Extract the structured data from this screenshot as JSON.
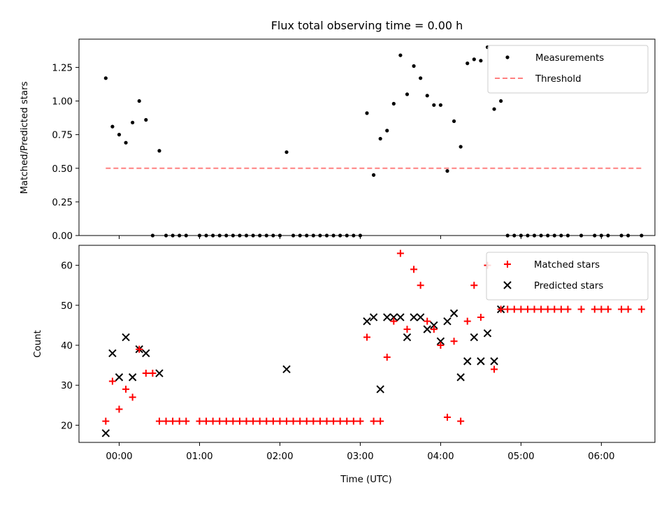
{
  "chart_data": [
    {
      "type": "scatter",
      "title": "Flux total observing time = 0.00 h",
      "xlabel": "",
      "ylabel": "Matched/Predicted stars",
      "ylim": [
        0,
        1.46
      ],
      "yticks": [
        "0.00",
        "0.25",
        "0.50",
        "0.75",
        "1.00",
        "1.25"
      ],
      "legend": {
        "position": "top-right",
        "entries": [
          "Measurements",
          "Threshold"
        ]
      },
      "threshold": {
        "name": "Threshold",
        "value": 0.5,
        "x_range": [
          "-0:10",
          "6:30"
        ],
        "color": "#ff8080"
      },
      "series": [
        {
          "name": "Measurements",
          "marker": "dot",
          "color": "#000000",
          "points": [
            [
              "-0:10",
              1.17
            ],
            [
              "-0:05",
              0.81
            ],
            [
              "0:00",
              0.75
            ],
            [
              "0:05",
              0.69
            ],
            [
              "0:10",
              0.84
            ],
            [
              "0:15",
              1.0
            ],
            [
              "0:20",
              0.86
            ],
            [
              "0:25",
              0.0
            ],
            [
              "0:30",
              0.63
            ],
            [
              "0:35",
              0.0
            ],
            [
              "0:40",
              0.0
            ],
            [
              "0:45",
              0.0
            ],
            [
              "0:50",
              0.0
            ],
            [
              "1:00",
              0.0
            ],
            [
              "1:05",
              0.0
            ],
            [
              "1:10",
              0.0
            ],
            [
              "1:15",
              0.0
            ],
            [
              "1:20",
              0.0
            ],
            [
              "1:25",
              0.0
            ],
            [
              "1:30",
              0.0
            ],
            [
              "1:35",
              0.0
            ],
            [
              "1:40",
              0.0
            ],
            [
              "1:45",
              0.0
            ],
            [
              "1:50",
              0.0
            ],
            [
              "1:55",
              0.0
            ],
            [
              "2:00",
              0.0
            ],
            [
              "2:05",
              0.62
            ],
            [
              "2:10",
              0.0
            ],
            [
              "2:15",
              0.0
            ],
            [
              "2:20",
              0.0
            ],
            [
              "2:25",
              0.0
            ],
            [
              "2:30",
              0.0
            ],
            [
              "2:35",
              0.0
            ],
            [
              "2:40",
              0.0
            ],
            [
              "2:45",
              0.0
            ],
            [
              "2:50",
              0.0
            ],
            [
              "2:55",
              0.0
            ],
            [
              "3:00",
              0.0
            ],
            [
              "3:05",
              0.91
            ],
            [
              "3:10",
              0.45
            ],
            [
              "3:15",
              0.72
            ],
            [
              "3:20",
              0.78
            ],
            [
              "3:25",
              0.98
            ],
            [
              "3:30",
              1.34
            ],
            [
              "3:35",
              1.05
            ],
            [
              "3:40",
              1.26
            ],
            [
              "3:45",
              1.17
            ],
            [
              "3:50",
              1.04
            ],
            [
              "3:55",
              0.97
            ],
            [
              "4:00",
              0.97
            ],
            [
              "4:05",
              0.48
            ],
            [
              "4:10",
              0.85
            ],
            [
              "4:15",
              0.66
            ],
            [
              "4:20",
              1.28
            ],
            [
              "4:25",
              1.31
            ],
            [
              "4:30",
              1.3
            ],
            [
              "4:35",
              1.4
            ],
            [
              "4:40",
              0.94
            ],
            [
              "4:45",
              1.0
            ],
            [
              "4:50",
              0.0
            ],
            [
              "4:55",
              0.0
            ],
            [
              "5:00",
              0.0
            ],
            [
              "5:05",
              0.0
            ],
            [
              "5:10",
              0.0
            ],
            [
              "5:15",
              0.0
            ],
            [
              "5:20",
              0.0
            ],
            [
              "5:25",
              0.0
            ],
            [
              "5:30",
              0.0
            ],
            [
              "5:35",
              0.0
            ],
            [
              "5:45",
              0.0
            ],
            [
              "5:55",
              0.0
            ],
            [
              "6:00",
              0.0
            ],
            [
              "6:05",
              0.0
            ],
            [
              "6:15",
              0.0
            ],
            [
              "6:20",
              0.0
            ],
            [
              "6:30",
              0.0
            ]
          ]
        }
      ]
    },
    {
      "type": "scatter",
      "title": "",
      "xlabel": "Time (UTC)",
      "ylabel": "Count",
      "ylim": [
        15.7,
        65
      ],
      "yticks": [
        "20",
        "30",
        "40",
        "50",
        "60"
      ],
      "xlim": [
        "-0:30",
        "6:40"
      ],
      "xticks": [
        "00:00",
        "01:00",
        "02:00",
        "03:00",
        "04:00",
        "05:00",
        "06:00"
      ],
      "legend": {
        "position": "top-right",
        "entries": [
          "Matched stars",
          "Predicted stars"
        ]
      },
      "series": [
        {
          "name": "Matched stars",
          "marker": "plus",
          "color": "#ff0000",
          "points": [
            [
              "-0:10",
              21
            ],
            [
              "-0:05",
              31
            ],
            [
              "0:00",
              24
            ],
            [
              "0:05",
              29
            ],
            [
              "0:10",
              27
            ],
            [
              "0:15",
              39
            ],
            [
              "0:20",
              33
            ],
            [
              "0:25",
              33
            ],
            [
              "0:30",
              21
            ],
            [
              "0:35",
              21
            ],
            [
              "0:40",
              21
            ],
            [
              "0:45",
              21
            ],
            [
              "0:50",
              21
            ],
            [
              "1:00",
              21
            ],
            [
              "1:05",
              21
            ],
            [
              "1:10",
              21
            ],
            [
              "1:15",
              21
            ],
            [
              "1:20",
              21
            ],
            [
              "1:25",
              21
            ],
            [
              "1:30",
              21
            ],
            [
              "1:35",
              21
            ],
            [
              "1:40",
              21
            ],
            [
              "1:45",
              21
            ],
            [
              "1:50",
              21
            ],
            [
              "1:55",
              21
            ],
            [
              "2:00",
              21
            ],
            [
              "2:05",
              21
            ],
            [
              "2:10",
              21
            ],
            [
              "2:15",
              21
            ],
            [
              "2:20",
              21
            ],
            [
              "2:25",
              21
            ],
            [
              "2:30",
              21
            ],
            [
              "2:35",
              21
            ],
            [
              "2:40",
              21
            ],
            [
              "2:45",
              21
            ],
            [
              "2:50",
              21
            ],
            [
              "2:55",
              21
            ],
            [
              "3:00",
              21
            ],
            [
              "3:05",
              42
            ],
            [
              "3:10",
              21
            ],
            [
              "3:15",
              21
            ],
            [
              "3:20",
              37
            ],
            [
              "3:25",
              46
            ],
            [
              "3:30",
              63
            ],
            [
              "3:35",
              44
            ],
            [
              "3:40",
              59
            ],
            [
              "3:45",
              55
            ],
            [
              "3:50",
              46
            ],
            [
              "3:55",
              44
            ],
            [
              "4:00",
              40
            ],
            [
              "4:05",
              22
            ],
            [
              "4:10",
              41
            ],
            [
              "4:15",
              21
            ],
            [
              "4:20",
              46
            ],
            [
              "4:25",
              55
            ],
            [
              "4:30",
              47
            ],
            [
              "4:35",
              60
            ],
            [
              "4:40",
              34
            ],
            [
              "4:45",
              49
            ],
            [
              "4:50",
              49
            ],
            [
              "4:55",
              49
            ],
            [
              "5:00",
              49
            ],
            [
              "5:05",
              49
            ],
            [
              "5:10",
              49
            ],
            [
              "5:15",
              49
            ],
            [
              "5:20",
              49
            ],
            [
              "5:25",
              49
            ],
            [
              "5:30",
              49
            ],
            [
              "5:35",
              49
            ],
            [
              "5:45",
              49
            ],
            [
              "5:55",
              49
            ],
            [
              "6:00",
              49
            ],
            [
              "6:05",
              49
            ],
            [
              "6:15",
              49
            ],
            [
              "6:20",
              49
            ],
            [
              "6:30",
              49
            ]
          ]
        },
        {
          "name": "Predicted stars",
          "marker": "x",
          "color": "#000000",
          "points": [
            [
              "-0:10",
              18
            ],
            [
              "-0:05",
              38
            ],
            [
              "0:00",
              32
            ],
            [
              "0:05",
              42
            ],
            [
              "0:10",
              32
            ],
            [
              "0:15",
              39
            ],
            [
              "0:20",
              38
            ],
            [
              "0:30",
              33
            ],
            [
              "2:05",
              34
            ],
            [
              "3:05",
              46
            ],
            [
              "3:10",
              47
            ],
            [
              "3:15",
              29
            ],
            [
              "3:20",
              47
            ],
            [
              "3:25",
              47
            ],
            [
              "3:30",
              47
            ],
            [
              "3:35",
              42
            ],
            [
              "3:40",
              47
            ],
            [
              "3:45",
              47
            ],
            [
              "3:50",
              44
            ],
            [
              "3:55",
              45
            ],
            [
              "4:00",
              41
            ],
            [
              "4:05",
              46
            ],
            [
              "4:10",
              48
            ],
            [
              "4:15",
              32
            ],
            [
              "4:20",
              36
            ],
            [
              "4:25",
              42
            ],
            [
              "4:30",
              36
            ],
            [
              "4:35",
              43
            ],
            [
              "4:40",
              36
            ],
            [
              "4:45",
              49
            ]
          ]
        }
      ]
    }
  ]
}
